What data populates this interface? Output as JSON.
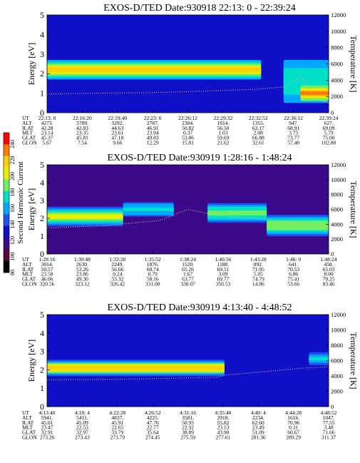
{
  "colorbar": {
    "label": "Second Harmonic Current",
    "ticks": [
      "240",
      "220",
      "200",
      "180",
      "160",
      "140",
      "120",
      "100",
      "80"
    ],
    "colors": [
      "#ff0000",
      "#ff7a00",
      "#ffd000",
      "#e8f000",
      "#70f060",
      "#00e0c8",
      "#00a8ff",
      "#2050f0",
      "#1010c8",
      "#3a0a8a",
      "#58003a",
      "#000000"
    ]
  },
  "chart_data": [
    {
      "type": "heatmap",
      "title": "EXOS-D/TED   Date:930918  22:13: 0 - 22:39:24",
      "ylabel": "Energy [eV]",
      "y2label": "Temperature [K]",
      "ylim": [
        0,
        5
      ],
      "y2lim": [
        0,
        12000
      ],
      "yticks": [
        "0",
        "1",
        "2",
        "3",
        "4",
        "5"
      ],
      "y2ticks": [
        "0",
        "2000",
        "4000",
        "6000",
        "8000",
        "10000",
        "12000"
      ],
      "table_rows": [
        "UT",
        "ALT",
        "ILAT",
        "MLT",
        "GLAT",
        "GLON"
      ],
      "columns": [
        [
          "22:13: 0",
          "4273.",
          "42.28",
          "23.14",
          "45.37",
          "5.67"
        ],
        [
          "22:16:20",
          "3789.",
          "42.83",
          "23.35",
          "45.81",
          "7.54"
        ],
        [
          "22:19:40",
          "3292.",
          "44.63",
          "23.61",
          "47.18",
          "9.66"
        ],
        [
          "22:23: 0",
          "2787.",
          "46.91",
          "23.94",
          "49.83",
          "12.29"
        ],
        [
          "22:26:12",
          "2304.",
          "50.82",
          "0.37",
          "53.86",
          "15.81"
        ],
        [
          "22:29:32",
          "1814.",
          "56.50",
          "1.03",
          "59.69",
          "21.62"
        ],
        [
          "22:32:52",
          "1355.",
          "63.17",
          "2.08",
          "66.88",
          "32.61"
        ],
        [
          "22:36:12",
          "947.",
          "68.91",
          "3.75",
          "73.77",
          "57.40"
        ],
        [
          "22:39:24",
          "627.",
          "69.09",
          "5.79",
          "75.00",
          "102.80"
        ]
      ],
      "bands": [
        {
          "x0": 0.0,
          "x1": 0.76,
          "center": 2.2,
          "halfwidth": 0.5,
          "level": 0.75,
          "edge": 0.45
        },
        {
          "x0": 0.84,
          "x1": 1.0,
          "center": 1.6,
          "halfwidth": 1.1,
          "level": 0.55,
          "edge": 0.45
        },
        {
          "x0": 0.9,
          "x1": 1.0,
          "center": 1.0,
          "halfwidth": 0.4,
          "level": 0.85,
          "edge": 0.6
        }
      ],
      "background_level": 0.3,
      "temperature_trace": [
        [
          0.0,
          2300
        ],
        [
          0.2,
          2400
        ],
        [
          0.4,
          2500
        ],
        [
          0.6,
          2700
        ],
        [
          0.75,
          2900
        ],
        [
          0.85,
          3200
        ],
        [
          0.9,
          4500
        ],
        [
          0.95,
          1800
        ],
        [
          1.0,
          1200
        ]
      ]
    },
    {
      "type": "heatmap",
      "title": "EXOS-D/TED   Date:930919  1:28:16 - 1:48:24",
      "ylabel": "Energy [eV]",
      "y2label": "Temperature [K]",
      "ylim": [
        0,
        5
      ],
      "y2lim": [
        0,
        12000
      ],
      "yticks": [
        "0",
        "1",
        "2",
        "3",
        "4",
        "5"
      ],
      "y2ticks": [
        "0",
        "2000",
        "4000",
        "6000",
        "8000",
        "10000",
        "12000"
      ],
      "table_rows": [
        "UT",
        "ALT",
        "ILAT",
        "MLT",
        "GLAT",
        "GLON"
      ],
      "columns": [
        [
          "1:28:16",
          "3014.",
          "50.57",
          "23.58",
          "46.06",
          "320.56"
        ],
        [
          "1:30:48",
          "2630.",
          "53.26",
          "23.86",
          "49.30",
          "323.12"
        ],
        [
          "1:33:20",
          "2249.",
          "56.66",
          "0.24",
          "53.32",
          "326.42"
        ],
        [
          "1:35:52",
          "1876.",
          "60.74",
          "0.79",
          "58.16",
          "331.00"
        ],
        [
          "1:38:24",
          "1520.",
          "65.26",
          "1.67",
          "63.77",
          "338.07"
        ],
        [
          "1:40:56",
          "1188.",
          "69.51",
          "3.09",
          "69.77",
          "350.53"
        ],
        [
          "1:43:28",
          "892.",
          "71.95",
          "5.05",
          "74.79",
          "14.86"
        ],
        [
          "1:46: 0",
          "641.",
          "70.53",
          "6.86",
          "75.41",
          "53.66"
        ],
        [
          "1:48:24",
          "458.",
          "65.03",
          "8.00",
          "70.25",
          "83.46"
        ]
      ],
      "bands": [
        {
          "x0": 0.0,
          "x1": 0.27,
          "center": 2.1,
          "halfwidth": 0.55,
          "level": 0.7,
          "edge": 0.4
        },
        {
          "x0": 0.27,
          "x1": 0.45,
          "center": 2.5,
          "halfwidth": 0.4,
          "level": 0.5,
          "edge": 0.4
        },
        {
          "x0": 0.57,
          "x1": 0.78,
          "center": 2.3,
          "halfwidth": 0.55,
          "level": 0.62,
          "edge": 0.4
        },
        {
          "x0": 0.78,
          "x1": 1.0,
          "center": 1.6,
          "halfwidth": 0.6,
          "level": 0.66,
          "edge": 0.4
        }
      ],
      "background_level": 0.18,
      "temperature_trace": [
        [
          0.0,
          3500
        ],
        [
          0.2,
          3800
        ],
        [
          0.4,
          4500
        ],
        [
          0.5,
          6000
        ],
        [
          0.6,
          5200
        ],
        [
          0.8,
          4600
        ],
        [
          1.0,
          3600
        ]
      ]
    },
    {
      "type": "heatmap",
      "title": "EXOS-D/TED   Date:930919  4:13:40 - 4:48:52",
      "ylabel": "Energy [eV]",
      "y2label": "Temperature [K]",
      "ylim": [
        0,
        5
      ],
      "y2lim": [
        0,
        12000
      ],
      "yticks": [
        "0",
        "1",
        "2",
        "3",
        "4",
        "5"
      ],
      "y2ticks": [
        "0",
        "2000",
        "4000",
        "6000",
        "8000",
        "10000",
        "12000"
      ],
      "table_rows": [
        "UT",
        "ALT",
        "ILAT",
        "MLT",
        "GLAT",
        "GLON"
      ],
      "columns": [
        [
          "4:13:40",
          "5941.",
          "45.01",
          "23.47",
          "32.91",
          "273.26"
        ],
        [
          "4:18: 4",
          "5411.",
          "45.09",
          "22.53",
          "32.97",
          "273.43"
        ],
        [
          "4:22:28",
          "4837.",
          "45.91",
          "22.65",
          "33.79",
          "273.79"
        ],
        [
          "4:26:52",
          "4225.",
          "47.76",
          "22.77",
          "35.64",
          "274.45"
        ],
        [
          "4:31:16",
          "3581.",
          "50.95",
          "22.92",
          "38.89",
          "275.59"
        ],
        [
          "4:35:40",
          "2918.",
          "55.82",
          "23.13",
          "43.90",
          "277.61"
        ],
        [
          "4:40: 4",
          "2234.",
          "62.60",
          "23.49",
          "51.09",
          "281.36"
        ],
        [
          "4:44:28",
          "1616.",
          "70.96",
          "0.31",
          "60.67",
          "289.29"
        ],
        [
          "4:48:52",
          "1047.",
          "77.55",
          "3.48",
          "71.66",
          "311.37"
        ]
      ],
      "bands": [
        {
          "x0": 0.0,
          "x1": 0.63,
          "center": 2.1,
          "halfwidth": 0.45,
          "level": 0.78,
          "edge": 0.4
        },
        {
          "x0": 0.93,
          "x1": 1.0,
          "center": 2.6,
          "halfwidth": 0.35,
          "level": 0.5,
          "edge": 0.35
        }
      ],
      "background_level": 0.28,
      "temperature_trace": [
        [
          0.0,
          3500
        ],
        [
          0.3,
          3600
        ],
        [
          0.6,
          3800
        ],
        [
          0.63,
          4100
        ],
        [
          0.9,
          5000
        ],
        [
          1.0,
          5200
        ]
      ]
    }
  ]
}
